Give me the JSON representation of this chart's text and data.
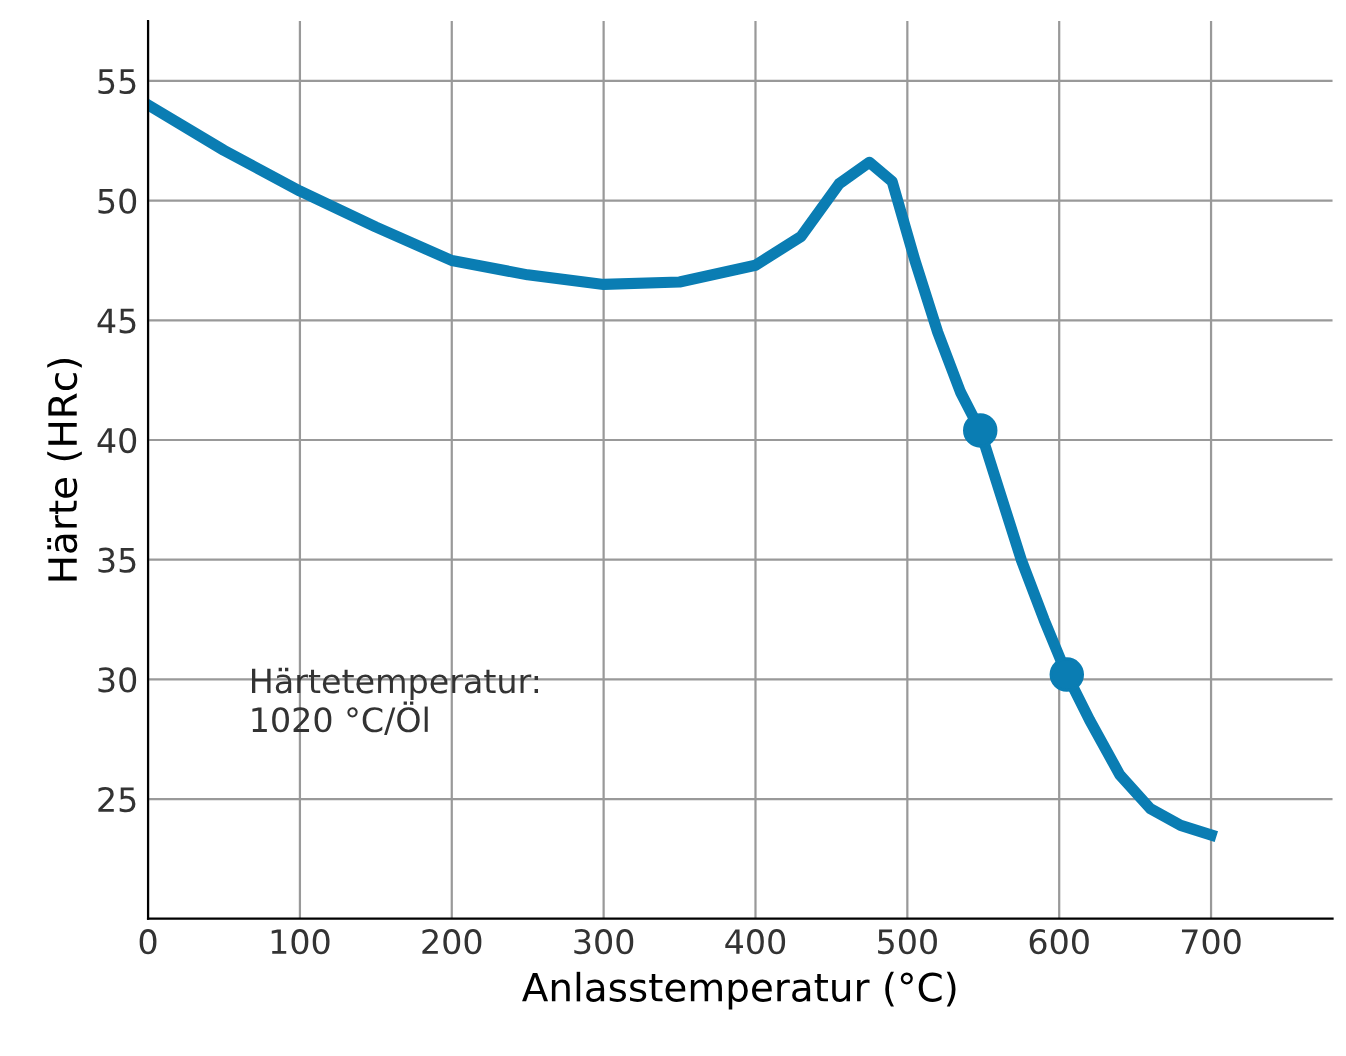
{
  "chart_data": {
    "type": "line",
    "xlabel": "Anlasstemperatur (°C)",
    "ylabel": "Härte (HRc)",
    "x": [
      0,
      50,
      100,
      150,
      200,
      250,
      300,
      350,
      400,
      430,
      455,
      475,
      490,
      505,
      520,
      535,
      548,
      560,
      575,
      590,
      605,
      620,
      640,
      660,
      680,
      700
    ],
    "series": [
      {
        "color": "#0a7db3",
        "values": [
          54,
          52.1,
          50.4,
          48.9,
          47.5,
          46.9,
          46.5,
          46.6,
          47.3,
          48.5,
          50.7,
          51.6,
          50.8,
          47.5,
          44.5,
          42,
          40.4,
          38,
          35,
          32.5,
          30.2,
          28.3,
          26,
          24.6,
          23.9,
          23.5
        ]
      },
      {
        "type": "scatter",
        "color": "#0a7db3",
        "x": [
          548,
          605
        ],
        "values": [
          40.4,
          30.2
        ],
        "marker": "circle"
      }
    ],
    "annotations": [
      "Härtetemperatur:\n1020 °C/Öl"
    ],
    "xlim": [
      0,
      780
    ],
    "ylim": [
      20,
      57.5
    ],
    "xticks": [
      0,
      100,
      200,
      300,
      400,
      500,
      600,
      700
    ],
    "yticks": [
      25,
      30,
      35,
      40,
      45,
      50,
      55
    ],
    "grid": true,
    "marker": "none",
    "line_style": "solid"
  }
}
